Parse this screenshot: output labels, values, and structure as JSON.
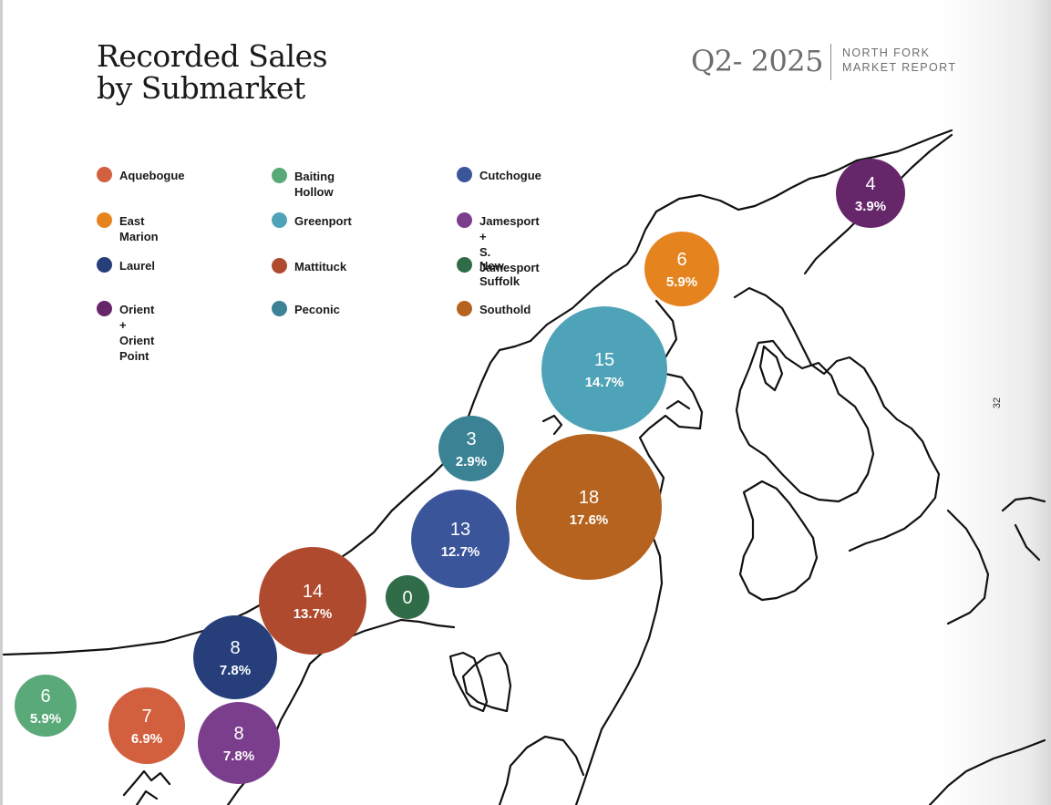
{
  "header": {
    "title_line1": "Recorded Sales",
    "title_line2": "by Submarket",
    "quarter": "Q2- 2025",
    "report_line1": "NORTH FORK",
    "report_line2": "MARKET REPORT",
    "page_number": "32"
  },
  "chart_data": {
    "type": "bubble",
    "title": "Recorded Sales by Submarket",
    "legend_placement": "top-left",
    "series": [
      {
        "name": "Aquebogue",
        "color": "#d2603f",
        "count": 7,
        "percent": "6.9%"
      },
      {
        "name": "Baiting Hollow",
        "color": "#5aa978",
        "count": 6,
        "percent": "5.9%"
      },
      {
        "name": "Cutchogue",
        "color": "#3b559b",
        "count": 13,
        "percent": "12.7%"
      },
      {
        "name": "East Marion",
        "color": "#e5841f",
        "count": 6,
        "percent": "5.9%"
      },
      {
        "name": "Greenport",
        "color": "#4fa3b8",
        "count": 15,
        "percent": "14.7%"
      },
      {
        "name": "Jamesport +\nS. Jamesport",
        "color": "#7b3e8d",
        "count": 8,
        "percent": "7.8%"
      },
      {
        "name": "Laurel",
        "color": "#263f7b",
        "count": 8,
        "percent": "7.8%"
      },
      {
        "name": "Mattituck",
        "color": "#b04a2e",
        "count": 14,
        "percent": "13.7%"
      },
      {
        "name": "New Suffolk",
        "color": "#2f6c47",
        "count": 0,
        "percent": ""
      },
      {
        "name": "Orient +\nOrient Point",
        "color": "#66276a",
        "count": 4,
        "percent": "3.9%"
      },
      {
        "name": "Peconic",
        "color": "#3a8294",
        "count": 3,
        "percent": "2.9%"
      },
      {
        "name": "Southold",
        "color": "#b5631e",
        "count": 18,
        "percent": "17.6%"
      }
    ]
  }
}
